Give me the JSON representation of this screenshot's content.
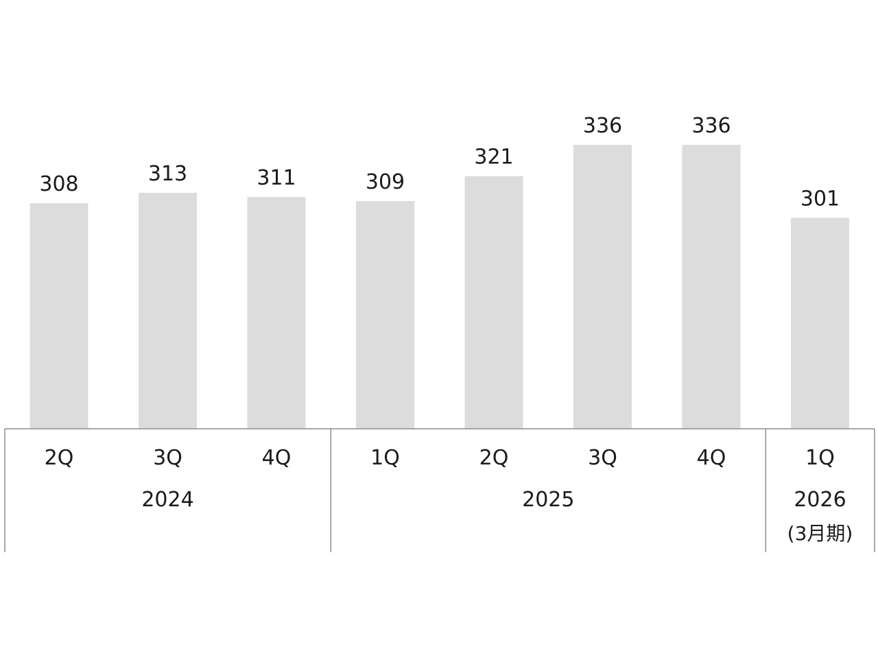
{
  "chart_data": {
    "type": "bar",
    "categories": [
      "2Q",
      "3Q",
      "4Q",
      "1Q",
      "2Q",
      "3Q",
      "4Q",
      "1Q"
    ],
    "values": [
      308,
      313,
      311,
      309,
      321,
      336,
      336,
      301
    ],
    "groups": [
      {
        "label": "2024",
        "sublabel": "",
        "count": 3
      },
      {
        "label": "2025",
        "sublabel": "",
        "count": 4
      },
      {
        "label": "2026",
        "sublabel": "(3月期)",
        "count": 1
      }
    ],
    "title": "",
    "xlabel": "",
    "ylabel": "",
    "ylim": [
      200,
      340
    ],
    "grid": false,
    "legend": "none",
    "colors": {
      "bar": "#dcdcdc",
      "text": "#1a1a1a",
      "axis": "#8c8c8c"
    }
  }
}
